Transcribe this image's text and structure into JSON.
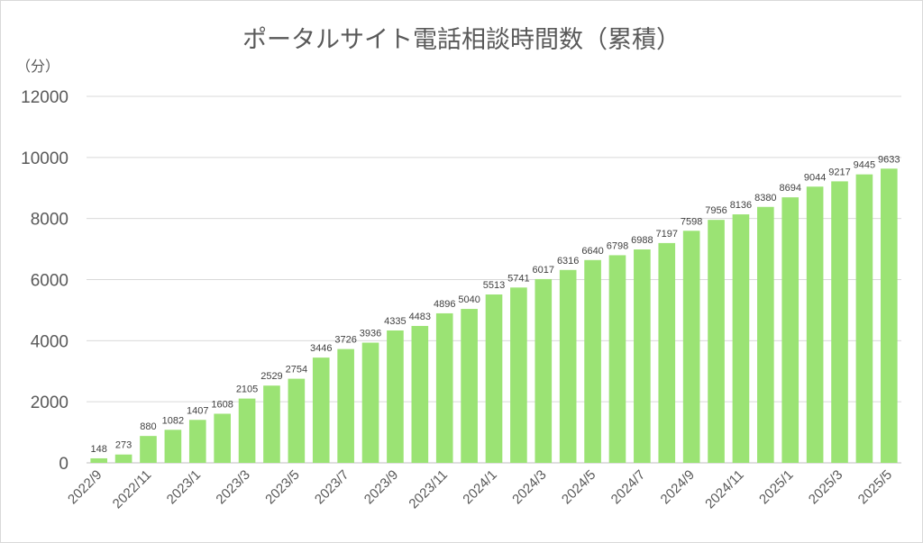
{
  "chart_data": {
    "type": "bar",
    "title": "ポータルサイト電話相談時間数（累積）",
    "unit_label": "（分）",
    "color": "#9be374",
    "grid": true,
    "ylim": [
      0,
      12000
    ],
    "yticks": [
      0,
      2000,
      4000,
      6000,
      8000,
      10000,
      12000
    ],
    "categories": [
      "2022/9",
      "2022/10",
      "2022/11",
      "2022/12",
      "2023/1",
      "2023/2",
      "2023/3",
      "2023/4",
      "2023/5",
      "2023/6",
      "2023/7",
      "2023/8",
      "2023/9",
      "2023/10",
      "2023/11",
      "2023/12",
      "2024/1",
      "2024/2",
      "2024/3",
      "2024/4",
      "2024/5",
      "2024/6",
      "2024/7",
      "2024/8",
      "2024/9",
      "2024/10",
      "2024/11",
      "2024/12",
      "2025/1",
      "2025/2",
      "2025/3",
      "2025/4",
      "2025/5"
    ],
    "x_tick_labels": [
      "2022/9",
      "2022/11",
      "2023/1",
      "2023/3",
      "2023/5",
      "2023/7",
      "2023/9",
      "2023/11",
      "2024/1",
      "2024/3",
      "2024/5",
      "2024/7",
      "2024/9",
      "2024/11",
      "2025/1",
      "2025/3",
      "2025/5"
    ],
    "values": [
      148,
      273,
      880,
      1082,
      1407,
      1608,
      2105,
      2529,
      2754,
      3446,
      3726,
      3936,
      4335,
      4483,
      4896,
      5040,
      5513,
      5741,
      6017,
      6316,
      6640,
      6798,
      6988,
      7197,
      7598,
      7956,
      8136,
      8380,
      8694,
      9044,
      9217,
      9445,
      9633
    ]
  }
}
